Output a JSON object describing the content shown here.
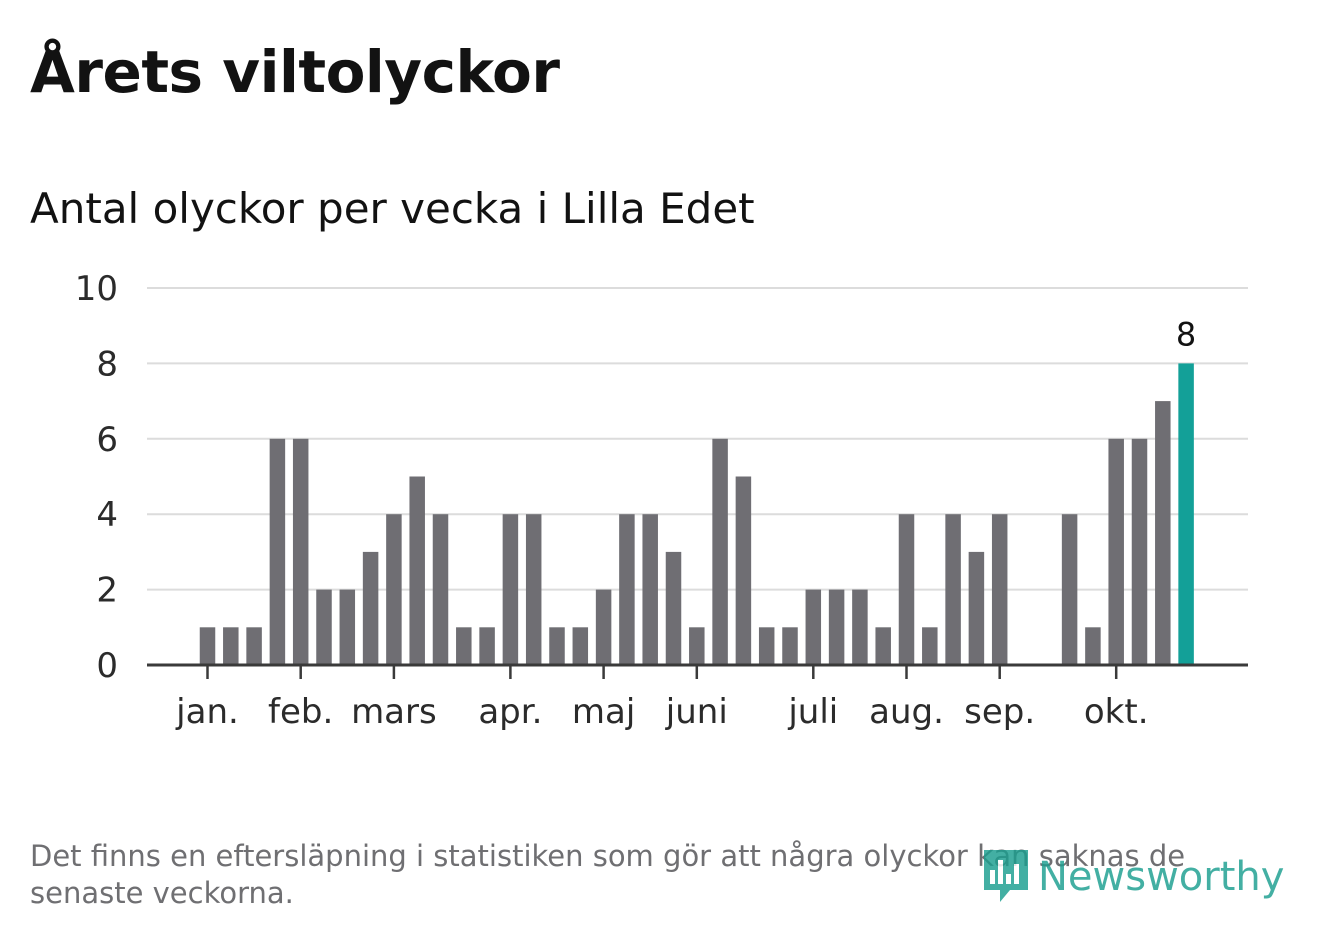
{
  "header": {
    "title": "Årets viltolyckor",
    "subtitle": "Antal olyckor per vecka i Lilla Edet"
  },
  "footnote": "Det finns en eftersläpning i statistiken som gör att några olyckor kan saknas de senaste veckorna.",
  "brand": {
    "name": "Newsworthy",
    "color": "#1b9e8f",
    "icon": "bar-chart-speech-bubble-icon"
  },
  "colors": {
    "bar": "#6f6e73",
    "highlight": "#13a098",
    "grid": "#dcdcdc",
    "axis": "#3a3a3a"
  },
  "chart_data": {
    "type": "bar",
    "title": "Antal olyckor per vecka i Lilla Edet",
    "xlabel": "",
    "ylabel": "",
    "ylim": [
      0,
      10
    ],
    "yticks": [
      0,
      2,
      4,
      6,
      8,
      10
    ],
    "grid": true,
    "weeks": [
      1,
      2,
      3,
      4,
      5,
      6,
      7,
      8,
      9,
      10,
      11,
      12,
      13,
      14,
      15,
      16,
      17,
      18,
      19,
      20,
      21,
      22,
      23,
      24,
      25,
      26,
      27,
      28,
      29,
      30,
      31,
      32,
      33,
      34,
      35,
      36,
      37,
      38,
      39,
      40,
      41,
      42,
      43,
      44,
      45,
      46,
      47,
      48,
      49,
      50,
      51,
      52
    ],
    "values": [
      null,
      null,
      1,
      1,
      1,
      6,
      6,
      2,
      2,
      3,
      4,
      5,
      4,
      1,
      1,
      4,
      4,
      1,
      1,
      2,
      4,
      4,
      3,
      1,
      6,
      5,
      1,
      1,
      2,
      2,
      2,
      1,
      4,
      1,
      4,
      3,
      4,
      0,
      0,
      4,
      1,
      6,
      6,
      7,
      8,
      null,
      null,
      null,
      null,
      null,
      null,
      null
    ],
    "highlight_week": 45,
    "highlight_label": "8",
    "month_labels": [
      {
        "label": "jan.",
        "week": 3
      },
      {
        "label": "feb.",
        "week": 7
      },
      {
        "label": "mars",
        "week": 11
      },
      {
        "label": "apr.",
        "week": 16
      },
      {
        "label": "maj",
        "week": 20
      },
      {
        "label": "juni",
        "week": 24
      },
      {
        "label": "juli",
        "week": 29
      },
      {
        "label": "aug.",
        "week": 33
      },
      {
        "label": "sep.",
        "week": 37
      },
      {
        "label": "okt.",
        "week": 42
      }
    ]
  }
}
